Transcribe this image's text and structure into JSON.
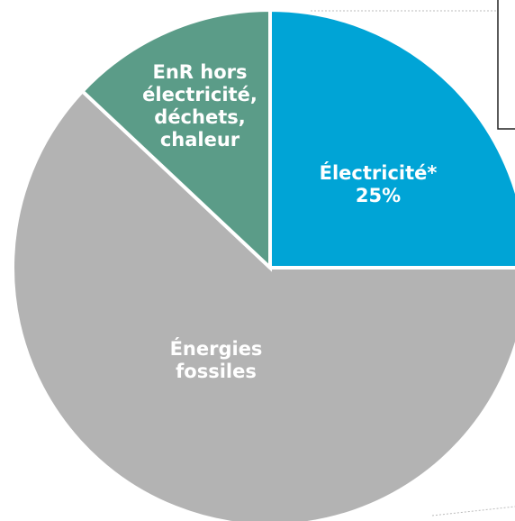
{
  "chart_data": {
    "type": "pie",
    "categories": [
      "Électricité*",
      "Énergies fossiles",
      "EnR hors électricité, déchets, chaleur"
    ],
    "values": [
      25,
      62,
      13
    ],
    "value_labels": [
      "25%",
      null,
      null
    ],
    "colors": [
      "#00a4d6",
      "#b3b3b3",
      "#5b9c88"
    ]
  }
}
